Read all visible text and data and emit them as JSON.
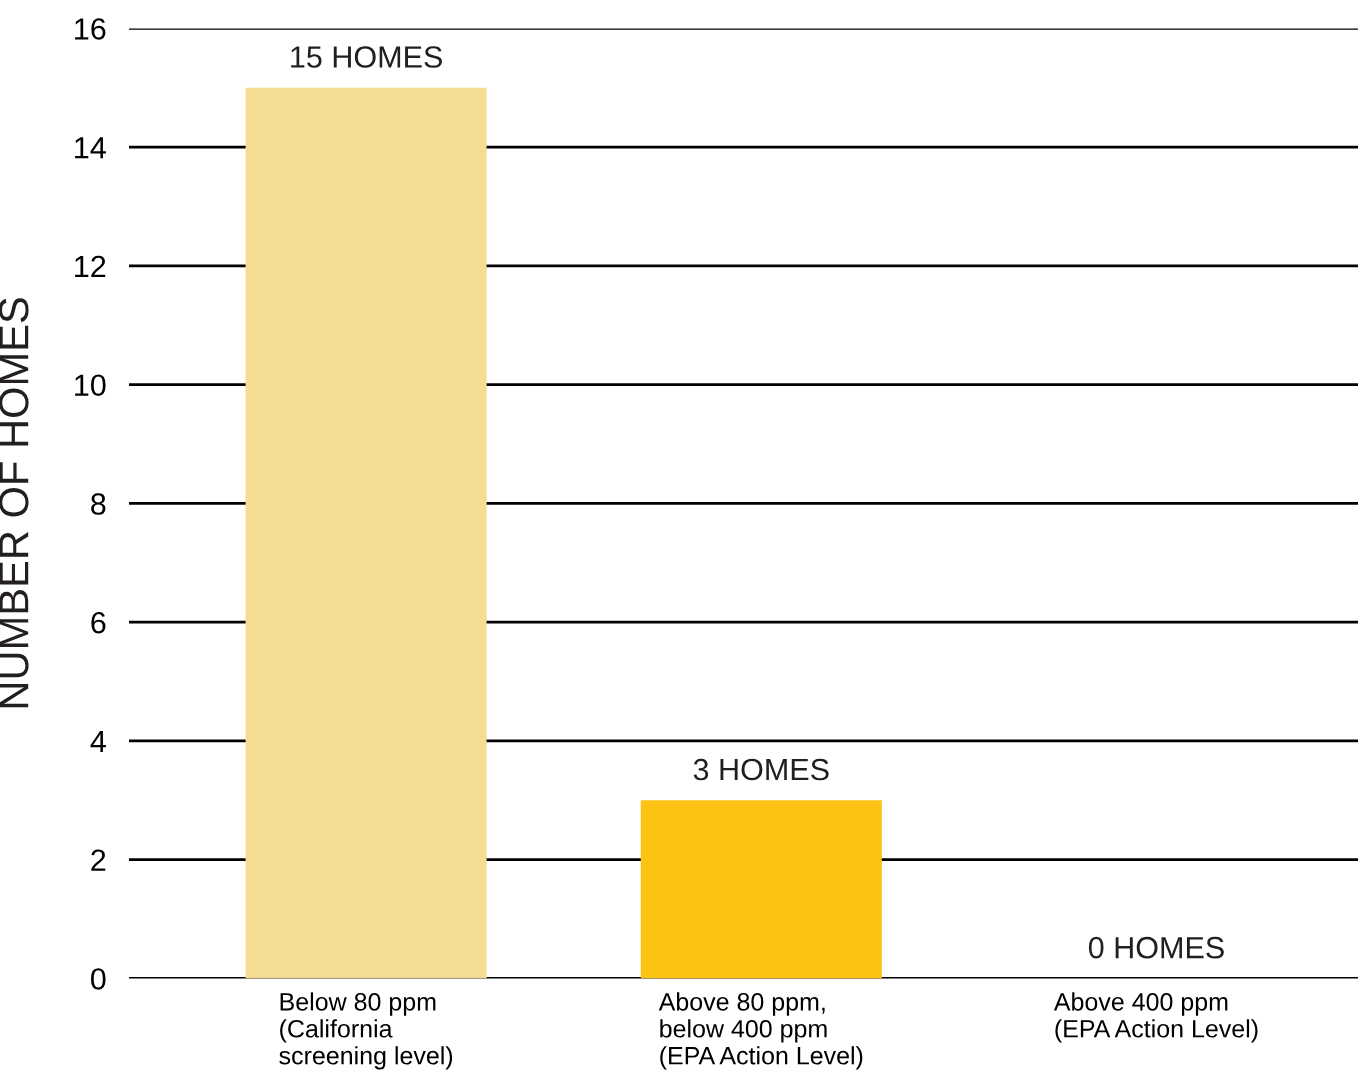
{
  "chart_data": {
    "type": "bar",
    "categories": [
      "Below 80 ppm\n(California\nscreening level)",
      "Above 80 ppm,\nbelow 400 ppm\n(EPA Action Level)",
      "Above 400 ppm\n(EPA Action Level)"
    ],
    "values": [
      15,
      3,
      0
    ],
    "colors": [
      "#f5dc93",
      "#fcc314",
      "#fcc314"
    ],
    "value_labels": [
      "15 HOMES",
      "3 HOMES",
      "0 HOMES"
    ],
    "ylabel": "NUMBER OF HOMES",
    "ylim": [
      0,
      16
    ],
    "yticks": [
      0,
      2,
      4,
      6,
      8,
      10,
      12,
      14,
      16
    ],
    "grid": "y"
  }
}
